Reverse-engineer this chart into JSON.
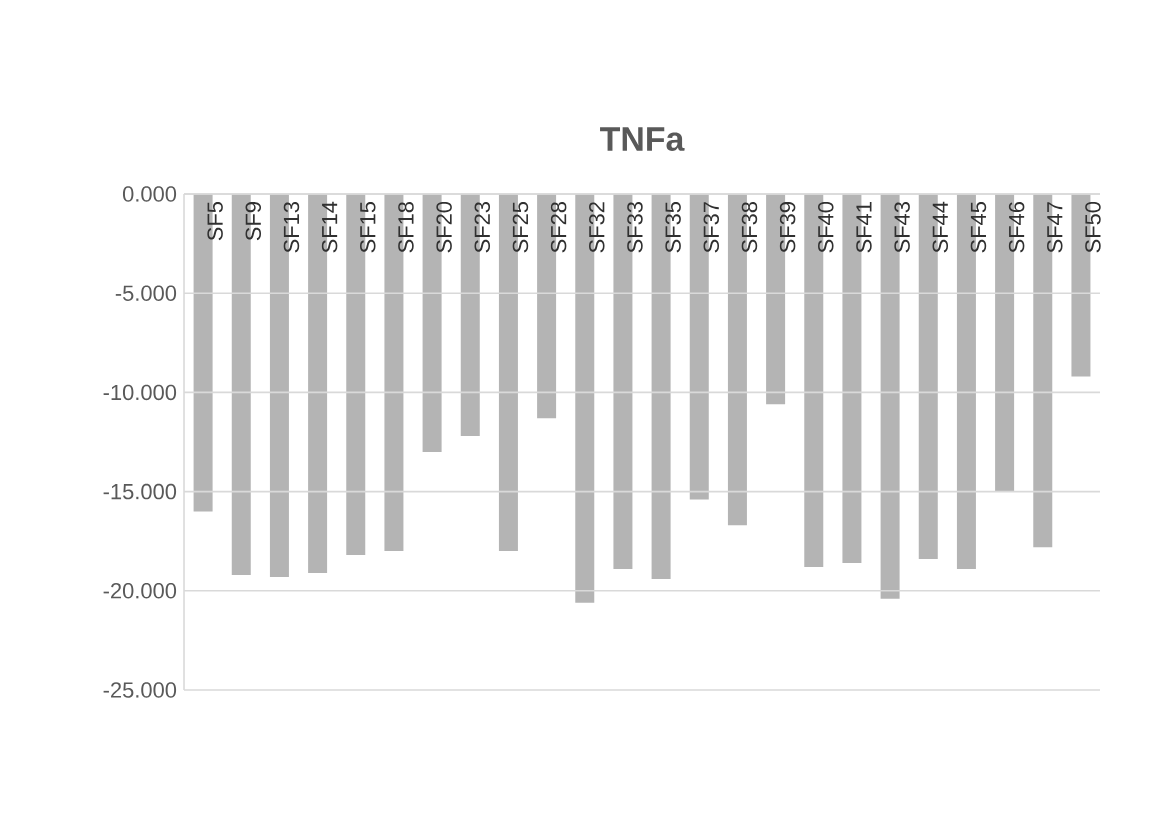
{
  "chart_data": {
    "type": "bar",
    "title": "TNFa",
    "categories": [
      "SF5",
      "SF9",
      "SF13",
      "SF14",
      "SF15",
      "SF18",
      "SF20",
      "SF23",
      "SF25",
      "SF28",
      "SF32",
      "SF33",
      "SF35",
      "SF37",
      "SF38",
      "SF39",
      "SF40",
      "SF41",
      "SF43",
      "SF44",
      "SF45",
      "SF46",
      "SF47",
      "SF50"
    ],
    "values": [
      -16.0,
      -19.2,
      -19.3,
      -19.1,
      -18.2,
      -18.0,
      -13.0,
      -12.2,
      -18.0,
      -11.3,
      -20.6,
      -18.9,
      -19.4,
      -15.4,
      -16.7,
      -10.6,
      -18.8,
      -18.6,
      -20.4,
      -18.4,
      -18.9,
      -15.0,
      -17.8,
      -9.2
    ],
    "color": "#b4b4b4",
    "ylim": [
      -25,
      0
    ],
    "yticks": [
      {
        "value": 0,
        "label": "0.000"
      },
      {
        "value": -5,
        "label": "-5.000"
      },
      {
        "value": -10,
        "label": "-10.000"
      },
      {
        "value": -15,
        "label": "-15.000"
      },
      {
        "value": -20,
        "label": "-20.000"
      },
      {
        "value": -25,
        "label": "-25.000"
      }
    ],
    "grid": "y"
  }
}
